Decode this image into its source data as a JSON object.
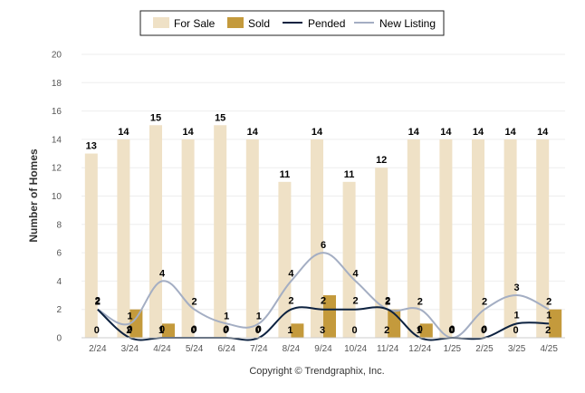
{
  "chart_data": {
    "type": "bar",
    "categories": [
      "2/24",
      "3/24",
      "4/24",
      "5/24",
      "6/24",
      "7/24",
      "8/24",
      "9/24",
      "10/24",
      "11/24",
      "12/24",
      "1/25",
      "2/25",
      "3/25",
      "4/25"
    ],
    "series": [
      {
        "name": "For Sale",
        "kind": "bar",
        "color": "#efe1c6",
        "values": [
          13,
          14,
          15,
          14,
          15,
          14,
          11,
          14,
          11,
          12,
          14,
          14,
          14,
          14,
          14
        ]
      },
      {
        "name": "Sold",
        "kind": "bar",
        "color": "#c49a3c",
        "values": [
          0,
          2,
          1,
          0,
          0,
          0,
          1,
          3,
          0,
          2,
          1,
          0,
          0,
          0,
          2
        ]
      },
      {
        "name": "Pended",
        "kind": "line",
        "color": "#0d2240",
        "values": [
          2,
          0,
          0,
          0,
          0,
          0,
          2,
          2,
          2,
          2,
          0,
          0,
          0,
          1,
          1
        ]
      },
      {
        "name": "New Listing",
        "kind": "line",
        "color": "#a4aec3",
        "values": [
          2,
          1,
          4,
          2,
          1,
          1,
          4,
          6,
          4,
          2,
          2,
          0,
          2,
          3,
          2
        ]
      }
    ],
    "ylabel": "Number of Homes",
    "ylim": [
      0,
      20
    ],
    "yticks": [
      0,
      2,
      4,
      6,
      8,
      10,
      12,
      14,
      16,
      18,
      20
    ],
    "grid": true,
    "legend": "top-center"
  },
  "footer": {
    "copyright": "Copyright © Trendgraphix, Inc."
  }
}
